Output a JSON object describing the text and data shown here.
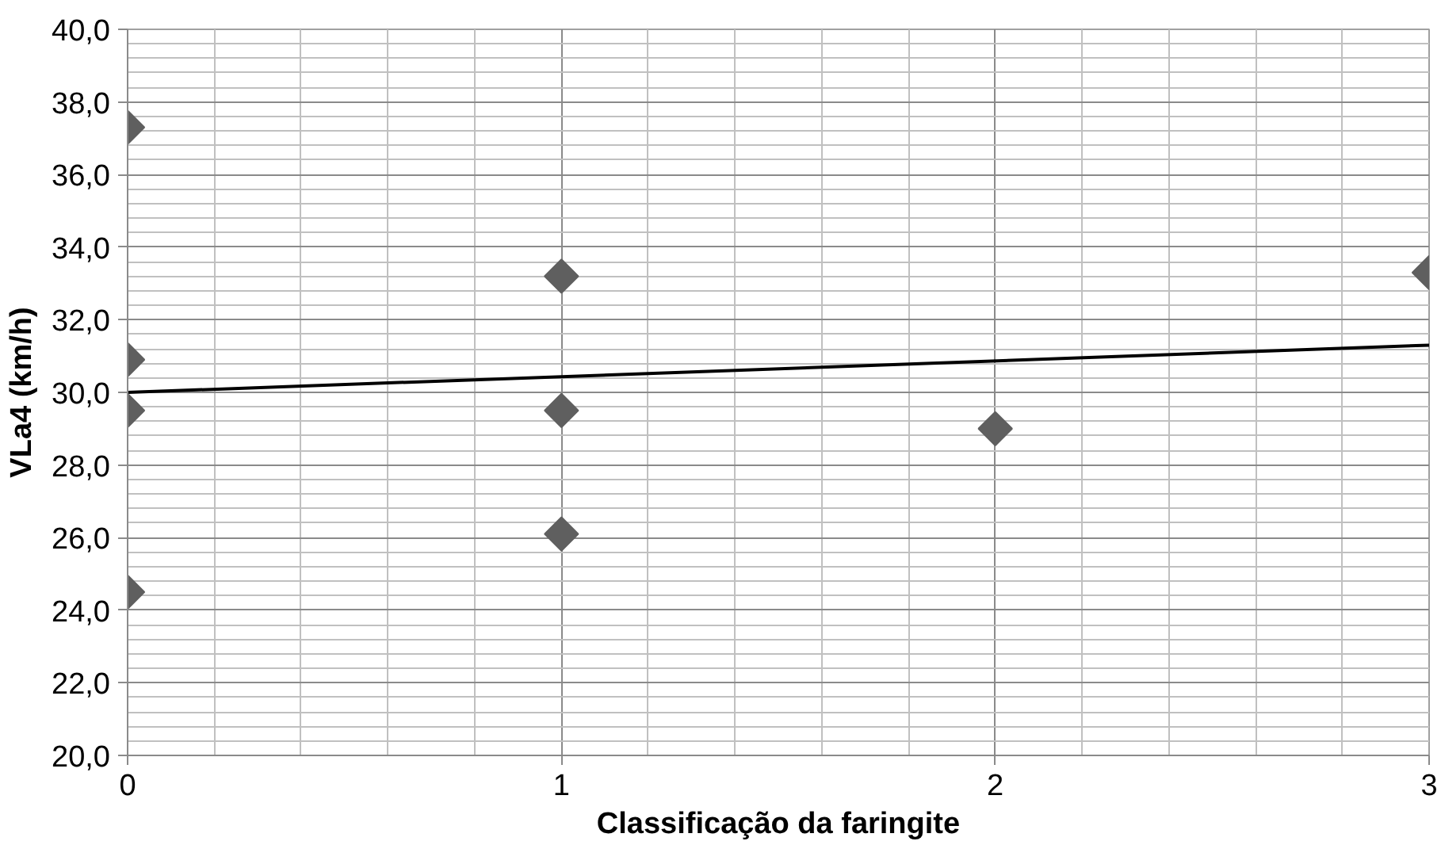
{
  "chart_data": {
    "type": "scatter",
    "xlabel": "Classificação da faringite",
    "ylabel": "VLa4 (km/h)",
    "xlim": [
      0,
      3
    ],
    "xticks": [
      0,
      1,
      2,
      3
    ],
    "ylim": [
      20,
      40
    ],
    "yticks": [
      {
        "value": 20,
        "label": "20,0"
      },
      {
        "value": 22,
        "label": "22,0"
      },
      {
        "value": 24,
        "label": "24,0"
      },
      {
        "value": 26,
        "label": "26,0"
      },
      {
        "value": 28,
        "label": "28,0"
      },
      {
        "value": 30,
        "label": "30,0"
      },
      {
        "value": 32,
        "label": "32,0"
      },
      {
        "value": 34,
        "label": "34,0"
      },
      {
        "value": 36,
        "label": "36,0"
      },
      {
        "value": 38,
        "label": "38,0"
      },
      {
        "value": 40,
        "label": "40,0"
      }
    ],
    "grid": true,
    "marker": "diamond",
    "series": [
      {
        "color": "#5f5f5f",
        "x": [
          0,
          0,
          0,
          0,
          1,
          1,
          1,
          2,
          3
        ],
        "values": [
          37.3,
          30.9,
          29.5,
          24.5,
          33.2,
          29.5,
          26.1,
          29.0,
          33.3
        ]
      },
      {
        "type": "line",
        "marker": "none",
        "color": "#000000",
        "x": [
          0,
          3
        ],
        "values": [
          30.0,
          31.3
        ]
      }
    ]
  }
}
